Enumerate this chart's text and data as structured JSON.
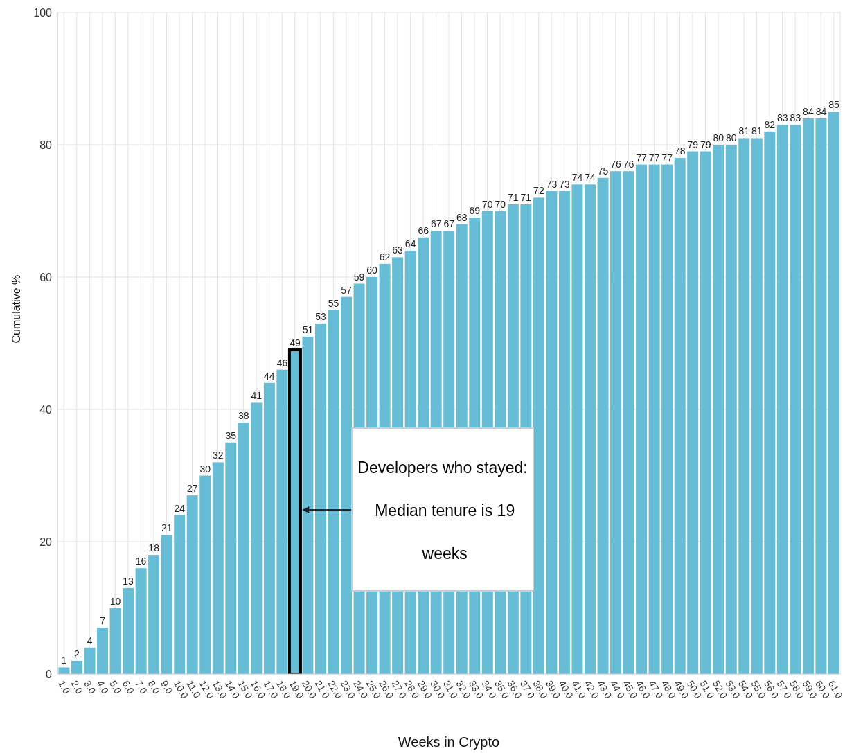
{
  "chart_data": {
    "type": "bar",
    "xlabel": "Weeks in Crypto",
    "ylabel": "Cumulative %",
    "categories": [
      "1.0",
      "2.0",
      "3.0",
      "4.0",
      "5.0",
      "6.0",
      "7.0",
      "8.0",
      "9.0",
      "10.0",
      "11.0",
      "12.0",
      "13.0",
      "14.0",
      "15.0",
      "16.0",
      "17.0",
      "18.0",
      "19.0",
      "20.0",
      "21.0",
      "22.0",
      "23.0",
      "24.0",
      "25.0",
      "26.0",
      "27.0",
      "28.0",
      "29.0",
      "30.0",
      "31.0",
      "32.0",
      "33.0",
      "34.0",
      "35.0",
      "36.0",
      "37.0",
      "38.0",
      "39.0",
      "40.0",
      "41.0",
      "42.0",
      "43.0",
      "44.0",
      "45.0",
      "46.0",
      "47.0",
      "48.0",
      "49.0",
      "50.0",
      "51.0",
      "52.0",
      "53.0",
      "54.0",
      "55.0",
      "56.0",
      "57.0",
      "58.0",
      "59.0",
      "60.0",
      "61.0"
    ],
    "values": [
      1,
      2,
      4,
      7,
      10,
      13,
      16,
      18,
      21,
      24,
      27,
      30,
      32,
      35,
      38,
      41,
      44,
      46,
      49,
      51,
      53,
      55,
      57,
      59,
      60,
      62,
      63,
      64,
      66,
      67,
      67,
      68,
      69,
      70,
      70,
      71,
      71,
      72,
      73,
      73,
      74,
      74,
      75,
      76,
      76,
      77,
      77,
      77,
      78,
      79,
      79,
      80,
      80,
      81,
      81,
      82,
      83,
      83,
      84,
      84,
      85
    ],
    "color": "#67bcd6",
    "data_labels": true,
    "grid": true,
    "ylim": [
      0,
      100
    ],
    "yticks": [
      0,
      20,
      40,
      60,
      80,
      100
    ],
    "annotations": [
      "Developers who stayed: Median tenure is 19 weeks"
    ]
  }
}
